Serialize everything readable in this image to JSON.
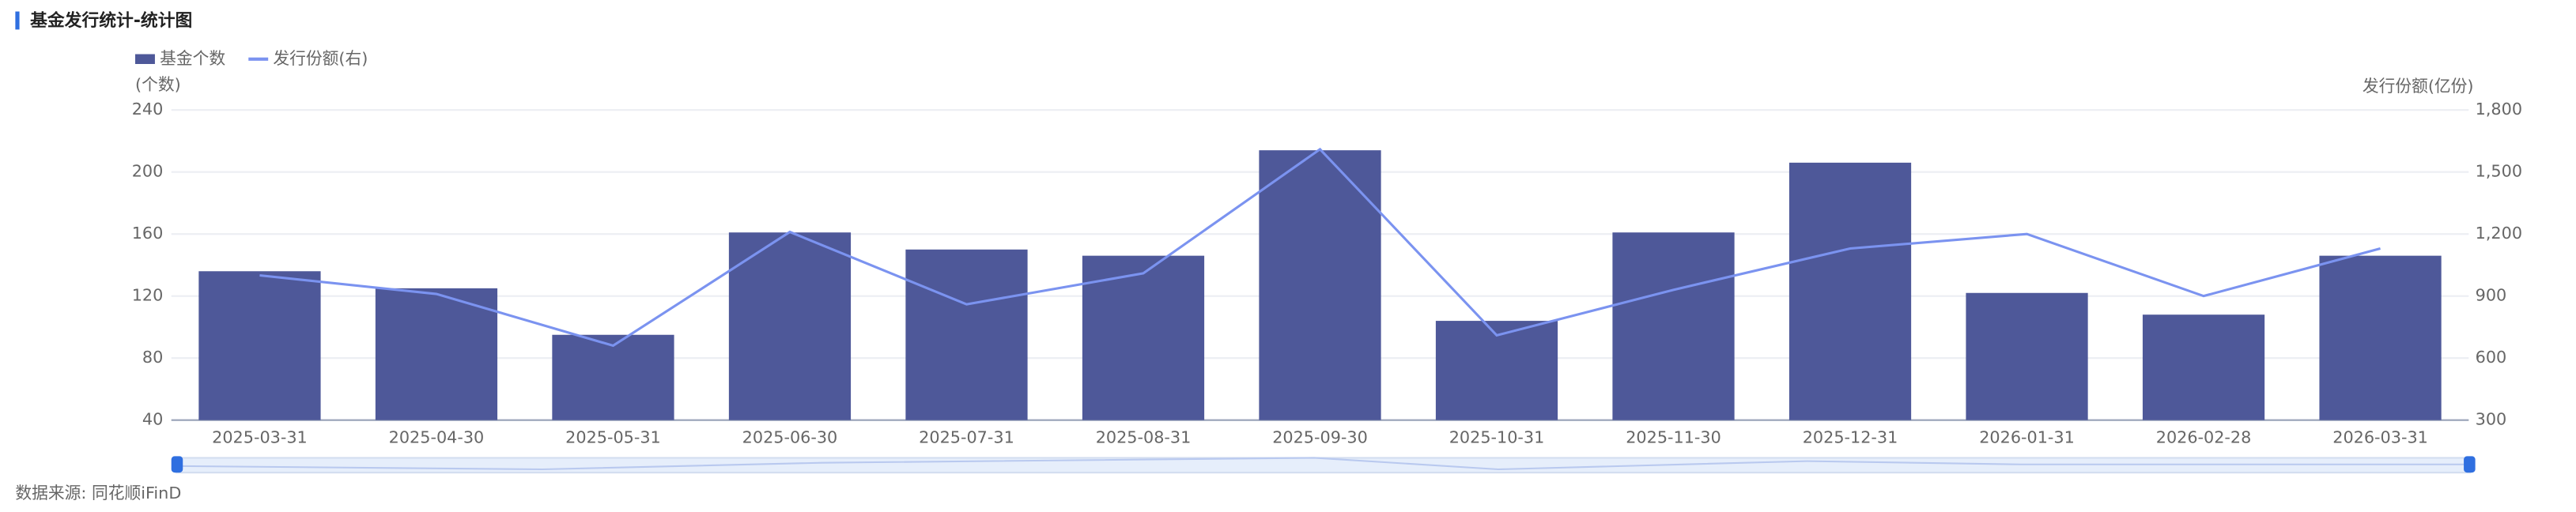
{
  "chart_data": {
    "type": "bar_line",
    "title": "基金发行统计-统计图",
    "y_label": "(个数)",
    "y2_label": "发行份额(亿份)",
    "source": "数据来源: 同花顺iFinD",
    "categories": [
      "2025-03-31",
      "2025-04-30",
      "2025-05-31",
      "2025-06-30",
      "2025-07-31",
      "2025-08-31",
      "2025-09-30",
      "2025-10-31",
      "2025-11-30",
      "2025-12-31",
      "2026-01-31",
      "2026-02-28",
      "2026-03-31"
    ],
    "series": [
      {
        "name": "基金个数",
        "type": "bar",
        "color": "#4e5899",
        "values": [
          136,
          125,
          95,
          161,
          150,
          146,
          214,
          104,
          161,
          206,
          122,
          108,
          146
        ]
      },
      {
        "name": "发行份额(右)",
        "type": "line",
        "axis": "y2",
        "color": "#7b93f0",
        "values": [
          1000,
          910,
          660,
          1210,
          860,
          1010,
          1610,
          710,
          930,
          1130,
          1200,
          900,
          1130
        ]
      }
    ],
    "ylim": [
      40,
      240
    ],
    "yticks": [
      40,
      80,
      120,
      160,
      200,
      240
    ],
    "y2lim": [
      300,
      1800
    ],
    "y2ticks": [
      300,
      600,
      900,
      {
        "value": 1200,
        "label": "1,200"
      },
      {
        "value": 1500,
        "label": "1,500"
      },
      {
        "value": 1800,
        "label": "1,800"
      }
    ],
    "grid": true
  }
}
